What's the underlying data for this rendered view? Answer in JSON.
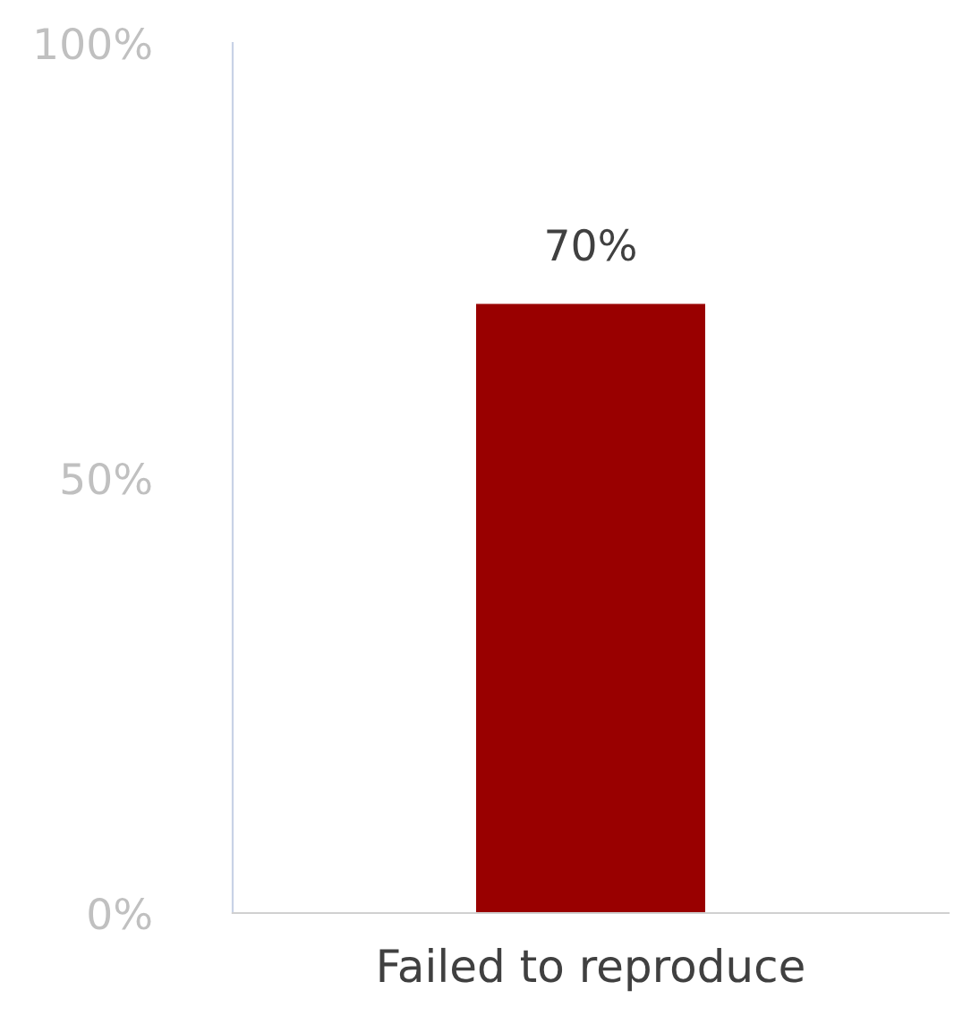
{
  "chart_data": {
    "type": "bar",
    "categories": [
      "Failed to reproduce"
    ],
    "values": [
      70
    ],
    "color": "#990000",
    "value_labels": [
      "70%"
    ],
    "ylim": [
      0,
      100
    ],
    "yticks": [
      {
        "value": 0,
        "label": "0%"
      },
      {
        "value": 50,
        "label": "50%"
      },
      {
        "value": 100,
        "label": "100%"
      }
    ],
    "grid": false,
    "legend": false
  }
}
